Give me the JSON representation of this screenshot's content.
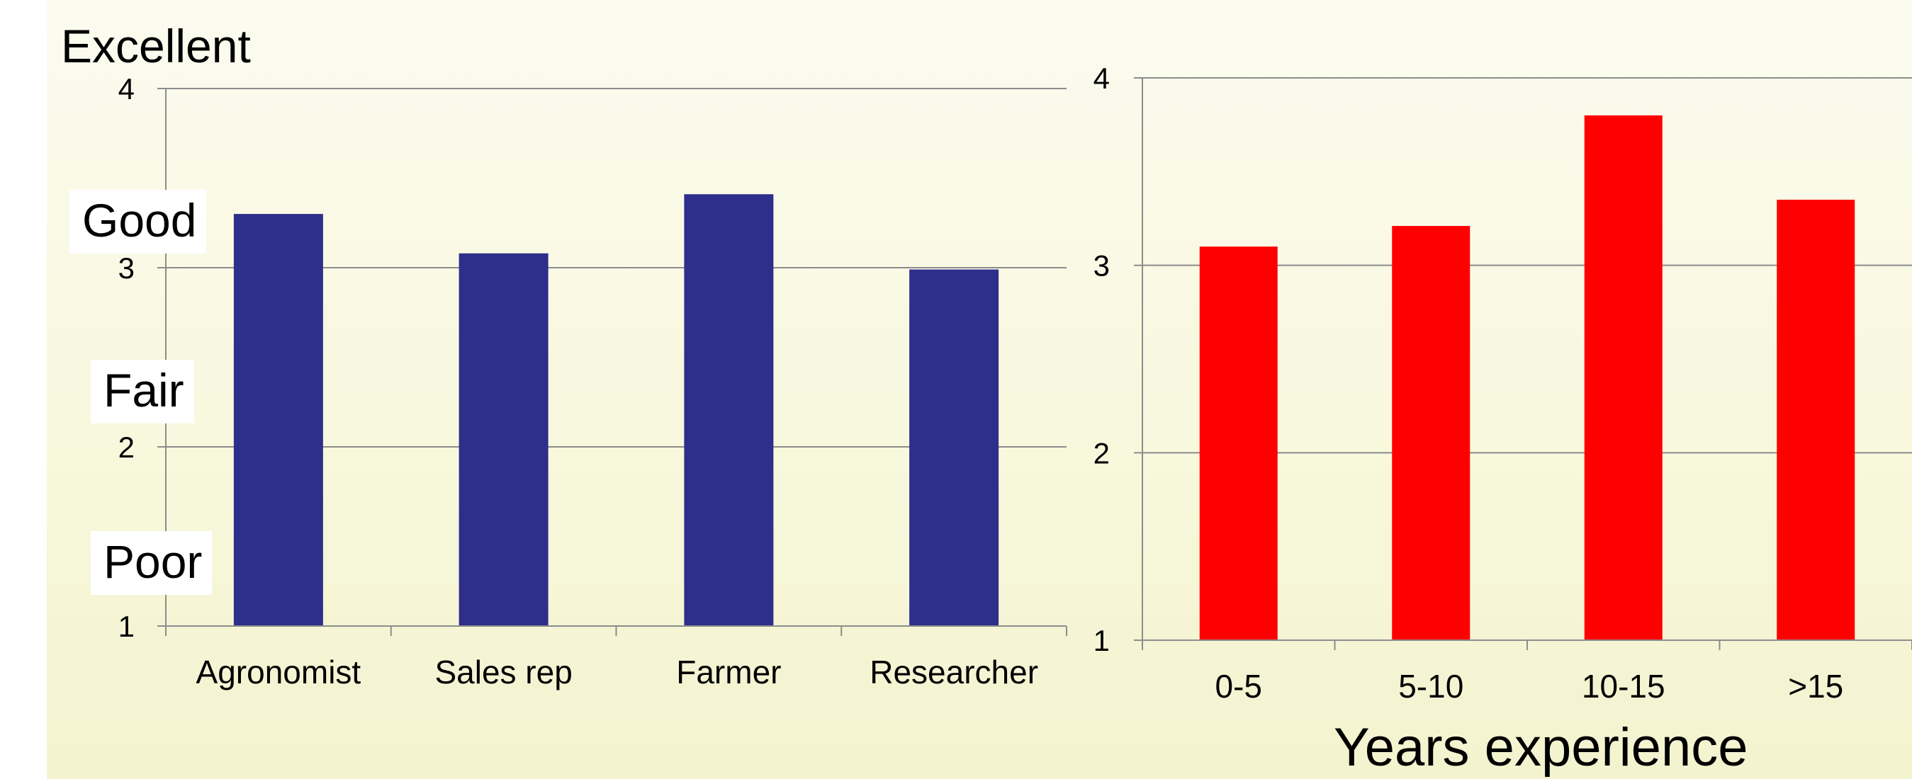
{
  "ratings": {
    "excellent": "Excellent",
    "good": "Good",
    "fair": "Fair",
    "poor": "Poor"
  },
  "chart_data": [
    {
      "type": "bar",
      "categories": [
        "Agronomist",
        "Sales rep",
        "Farmer",
        "Researcher"
      ],
      "values": [
        3.3,
        3.08,
        3.41,
        2.99
      ],
      "ylim": [
        1,
        4
      ],
      "yticks": [
        "1",
        "2",
        "3",
        "4"
      ],
      "color": "#2e2e8b",
      "grid": true
    },
    {
      "type": "bar",
      "categories": [
        "0-5",
        "5-10",
        "10-15",
        ">15"
      ],
      "values": [
        3.1,
        3.21,
        3.8,
        3.35
      ],
      "ylim": [
        1,
        4
      ],
      "yticks": [
        "1",
        "2",
        "3",
        "4"
      ],
      "xlabel": "Years experience",
      "color": "#ff0000",
      "grid": true
    }
  ]
}
